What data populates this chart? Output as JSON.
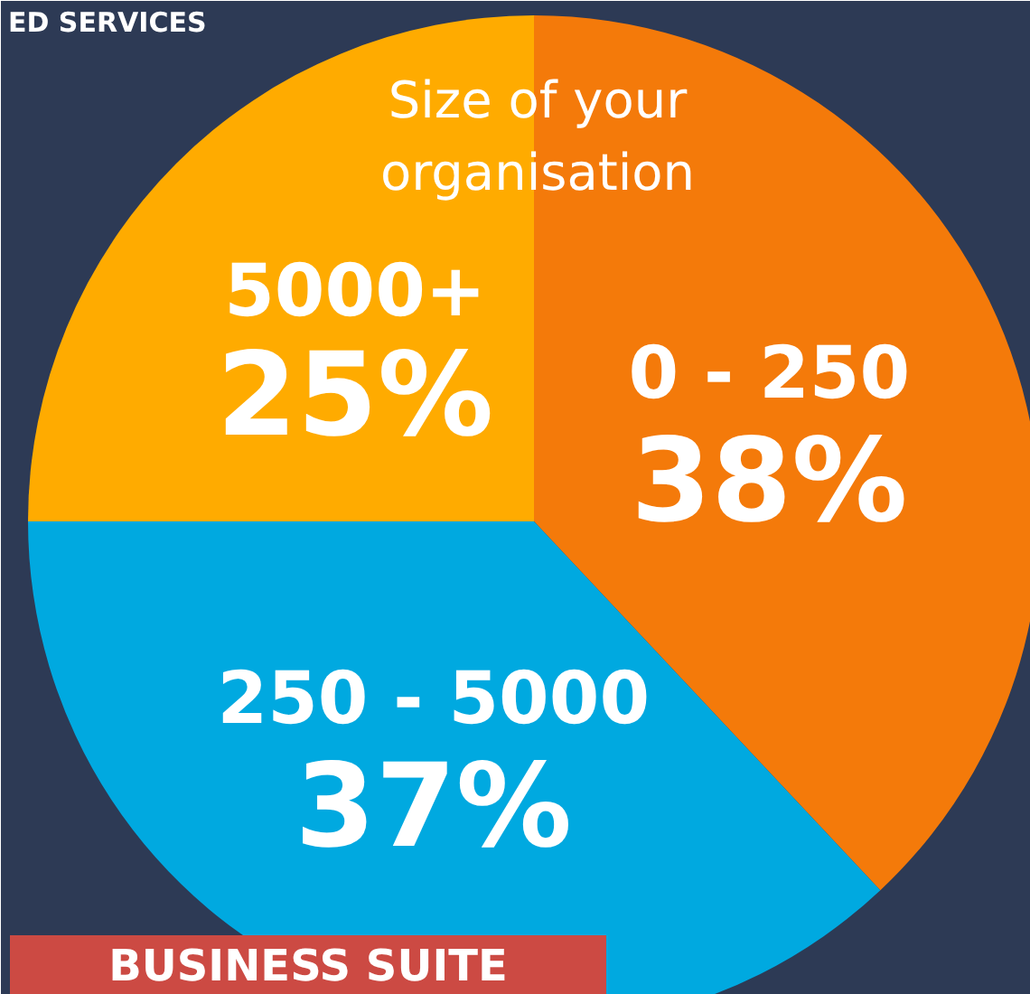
{
  "chart_data": {
    "type": "pie",
    "title": "Size of your organisation",
    "categories": [
      "0 - 250",
      "250 - 5000",
      "5000+"
    ],
    "values": [
      38,
      37,
      25
    ],
    "value_labels": [
      "38%",
      "37%",
      "25%"
    ],
    "colors": [
      "#f47a0a",
      "#00a9e0",
      "#ffab00"
    ],
    "annotations": [
      "ED SERVICES",
      "BUSINESS SUITE"
    ]
  }
}
